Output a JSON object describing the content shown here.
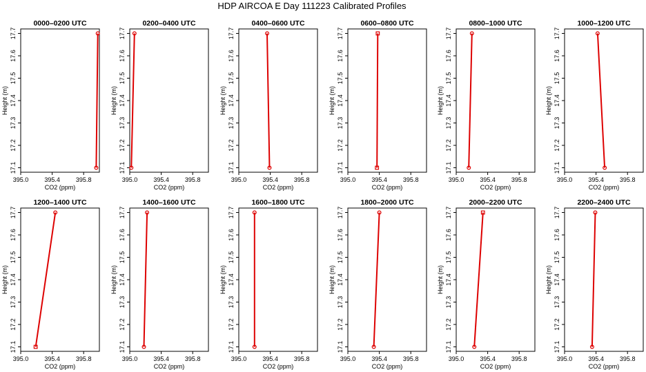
{
  "figure": {
    "title": "HDP AIRCOA E  Day 111223  Calibrated Profiles"
  },
  "chart_data": [
    {
      "type": "line",
      "title": "0000–0200 UTC",
      "xlabel": "CO2 (ppm)",
      "ylabel": "Height (m)",
      "xlim": [
        395.0,
        396.0
      ],
      "ylim": [
        17.08,
        17.72
      ],
      "xticks": [
        "395.0",
        "395.4",
        "395.8"
      ],
      "yticks": [
        "17.1",
        "17.2",
        "17.3",
        "17.4",
        "17.5",
        "17.6",
        "17.7"
      ],
      "grid": false,
      "x": [
        395.96,
        395.98
      ],
      "y": [
        17.1,
        17.7
      ],
      "point_markers": [
        "circle",
        "circle"
      ]
    },
    {
      "type": "line",
      "title": "0200–0400 UTC",
      "xlabel": "CO2 (ppm)",
      "ylabel": "Height (m)",
      "xlim": [
        395.0,
        396.0
      ],
      "ylim": [
        17.08,
        17.72
      ],
      "xticks": [
        "395.0",
        "395.4",
        "395.8"
      ],
      "yticks": [
        "17.1",
        "17.2",
        "17.3",
        "17.4",
        "17.5",
        "17.6",
        "17.7"
      ],
      "grid": false,
      "x": [
        395.02,
        395.06
      ],
      "y": [
        17.1,
        17.7
      ],
      "point_markers": [
        "circle",
        "circle"
      ]
    },
    {
      "type": "line",
      "title": "0400–0600 UTC",
      "xlabel": "CO2 (ppm)",
      "ylabel": "Height (m)",
      "xlim": [
        395.0,
        396.0
      ],
      "ylim": [
        17.08,
        17.72
      ],
      "xticks": [
        "395.0",
        "395.4",
        "395.8"
      ],
      "yticks": [
        "17.1",
        "17.2",
        "17.3",
        "17.4",
        "17.5",
        "17.6",
        "17.7"
      ],
      "grid": false,
      "x": [
        395.39,
        395.36
      ],
      "y": [
        17.1,
        17.7
      ],
      "point_markers": [
        "circle",
        "circle"
      ]
    },
    {
      "type": "line",
      "title": "0600–0800 UTC",
      "xlabel": "CO2 (ppm)",
      "ylabel": "Height (m)",
      "xlim": [
        395.0,
        396.0
      ],
      "ylim": [
        17.08,
        17.72
      ],
      "xticks": [
        "395.0",
        "395.4",
        "395.8"
      ],
      "yticks": [
        "17.1",
        "17.2",
        "17.3",
        "17.4",
        "17.5",
        "17.6",
        "17.7"
      ],
      "grid": false,
      "x": [
        395.37,
        395.38
      ],
      "y": [
        17.1,
        17.7
      ],
      "point_markers": [
        "square",
        "square"
      ]
    },
    {
      "type": "line",
      "title": "0800–1000 UTC",
      "xlabel": "CO2 (ppm)",
      "ylabel": "Height (m)",
      "xlim": [
        395.0,
        396.0
      ],
      "ylim": [
        17.08,
        17.72
      ],
      "xticks": [
        "395.0",
        "395.4",
        "395.8"
      ],
      "yticks": [
        "17.1",
        "17.2",
        "17.3",
        "17.4",
        "17.5",
        "17.6",
        "17.7"
      ],
      "grid": false,
      "x": [
        395.16,
        395.2
      ],
      "y": [
        17.1,
        17.7
      ],
      "point_markers": [
        "circle",
        "circle"
      ]
    },
    {
      "type": "line",
      "title": "1000–1200 UTC",
      "xlabel": "CO2 (ppm)",
      "ylabel": "Height (m)",
      "xlim": [
        395.0,
        396.0
      ],
      "ylim": [
        17.08,
        17.72
      ],
      "xticks": [
        "395.0",
        "395.4",
        "395.8"
      ],
      "yticks": [
        "17.1",
        "17.2",
        "17.3",
        "17.4",
        "17.5",
        "17.6",
        "17.7"
      ],
      "grid": false,
      "x": [
        395.51,
        395.42
      ],
      "y": [
        17.1,
        17.7
      ],
      "point_markers": [
        "circle",
        "circle"
      ]
    },
    {
      "type": "line",
      "title": "1200–1400 UTC",
      "xlabel": "CO2 (ppm)",
      "ylabel": "Height (m)",
      "xlim": [
        395.0,
        396.0
      ],
      "ylim": [
        17.08,
        17.72
      ],
      "xticks": [
        "395.0",
        "395.4",
        "395.8"
      ],
      "yticks": [
        "17.1",
        "17.2",
        "17.3",
        "17.4",
        "17.5",
        "17.6",
        "17.7"
      ],
      "grid": false,
      "x": [
        395.19,
        395.44
      ],
      "y": [
        17.1,
        17.7
      ],
      "point_markers": [
        "square",
        "circle"
      ]
    },
    {
      "type": "line",
      "title": "1400–1600 UTC",
      "xlabel": "CO2 (ppm)",
      "ylabel": "Height (m)",
      "xlim": [
        395.0,
        396.0
      ],
      "ylim": [
        17.08,
        17.72
      ],
      "xticks": [
        "395.0",
        "395.4",
        "395.8"
      ],
      "yticks": [
        "17.1",
        "17.2",
        "17.3",
        "17.4",
        "17.5",
        "17.6",
        "17.7"
      ],
      "grid": false,
      "x": [
        395.18,
        395.22
      ],
      "y": [
        17.1,
        17.7
      ],
      "point_markers": [
        "circle",
        "circle"
      ]
    },
    {
      "type": "line",
      "title": "1600–1800 UTC",
      "xlabel": "CO2 (ppm)",
      "ylabel": "Height (m)",
      "xlim": [
        395.0,
        396.0
      ],
      "ylim": [
        17.08,
        17.72
      ],
      "xticks": [
        "395.0",
        "395.4",
        "395.8"
      ],
      "yticks": [
        "17.1",
        "17.2",
        "17.3",
        "17.4",
        "17.5",
        "17.6",
        "17.7"
      ],
      "grid": false,
      "x": [
        395.2,
        395.2
      ],
      "y": [
        17.1,
        17.7
      ],
      "point_markers": [
        "circle",
        "circle"
      ]
    },
    {
      "type": "line",
      "title": "1800–2000 UTC",
      "xlabel": "CO2 (ppm)",
      "ylabel": "Height (m)",
      "xlim": [
        395.0,
        396.0
      ],
      "ylim": [
        17.08,
        17.72
      ],
      "xticks": [
        "395.0",
        "395.4",
        "395.8"
      ],
      "yticks": [
        "17.1",
        "17.2",
        "17.3",
        "17.4",
        "17.5",
        "17.6",
        "17.7"
      ],
      "grid": false,
      "x": [
        395.33,
        395.4
      ],
      "y": [
        17.1,
        17.7
      ],
      "point_markers": [
        "circle",
        "circle"
      ]
    },
    {
      "type": "line",
      "title": "2000–2200 UTC",
      "xlabel": "CO2 (ppm)",
      "ylabel": "Height (m)",
      "xlim": [
        395.0,
        396.0
      ],
      "ylim": [
        17.08,
        17.72
      ],
      "xticks": [
        "395.0",
        "395.4",
        "395.8"
      ],
      "yticks": [
        "17.1",
        "17.2",
        "17.3",
        "17.4",
        "17.5",
        "17.6",
        "17.7"
      ],
      "grid": false,
      "x": [
        395.23,
        395.34
      ],
      "y": [
        17.1,
        17.7
      ],
      "point_markers": [
        "circle",
        "square"
      ]
    },
    {
      "type": "line",
      "title": "2200–2400 UTC",
      "xlabel": "CO2 (ppm)",
      "ylabel": "Height (m)",
      "xlim": [
        395.0,
        396.0
      ],
      "ylim": [
        17.08,
        17.72
      ],
      "xticks": [
        "395.0",
        "395.4",
        "395.8"
      ],
      "yticks": [
        "17.1",
        "17.2",
        "17.3",
        "17.4",
        "17.5",
        "17.6",
        "17.7"
      ],
      "grid": false,
      "x": [
        395.35,
        395.39
      ],
      "y": [
        17.1,
        17.7
      ],
      "point_markers": [
        "circle",
        "circle"
      ]
    }
  ],
  "colors": {
    "line": "#dd0000",
    "axis": "#000000",
    "background": "#ffffff"
  }
}
